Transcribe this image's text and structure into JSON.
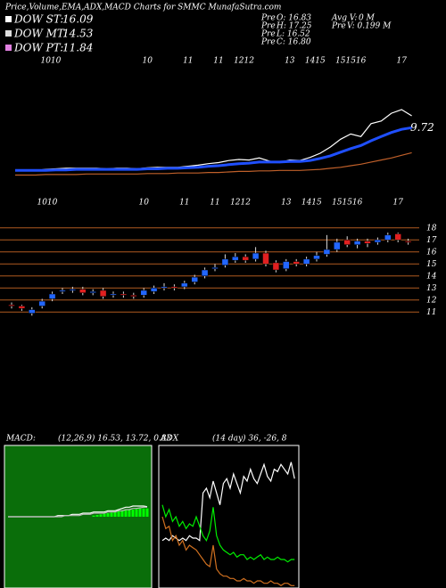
{
  "header": {
    "title": "Price,Volume,EMA,ADX,MACD Charts for SMMC MunafaSutra.com",
    "dow": [
      {
        "label": "DOW ST:",
        "value": "16.09",
        "color": "#ffffff"
      },
      {
        "label": "DOW MT:",
        "value": "14.53",
        "color": "#dddddd"
      },
      {
        "label": "DOW PT:",
        "value": "11.84",
        "color": "#e080e0"
      }
    ],
    "pre": [
      {
        "label": "Pre",
        "text": "O: 16.83"
      },
      {
        "label": "Pre",
        "text": "H: 17.25"
      },
      {
        "label": "Pre",
        "text": "L: 16.52"
      },
      {
        "label": "Pre",
        "text": "C: 16.80"
      }
    ],
    "volume": [
      {
        "label": "Avg V:",
        "text": "0  M"
      },
      {
        "label": "Pre",
        "text": "V: 0.199 M"
      }
    ]
  },
  "chart_data": [
    {
      "type": "line",
      "ylim": [
        0,
        24
      ],
      "end_label": 9.72,
      "series": [
        {
          "color": "#ffffff",
          "values": [
            1.6,
            1.6,
            1.5,
            1.7,
            1.8,
            1.9,
            1.9,
            1.9,
            1.9,
            1.8,
            1.9,
            1.9,
            1.8,
            2.0,
            2.1,
            2.1,
            2.1,
            2.3,
            2.5,
            2.8,
            3.0,
            3.4,
            3.6,
            3.5,
            3.9,
            3.3,
            3.0,
            3.5,
            3.4,
            4.0,
            4.8,
            6.0,
            7.5,
            8.5,
            8.0,
            10.5,
            11.0,
            12.5,
            13.2,
            12.0
          ]
        },
        {
          "color": "#1f4fff",
          "values": [
            1.5,
            1.5,
            1.5,
            1.5,
            1.6,
            1.6,
            1.7,
            1.7,
            1.7,
            1.7,
            1.7,
            1.7,
            1.7,
            1.8,
            1.8,
            1.9,
            1.9,
            2.0,
            2.1,
            2.3,
            2.4,
            2.6,
            2.8,
            2.9,
            3.1,
            3.1,
            3.1,
            3.2,
            3.2,
            3.4,
            3.8,
            4.3,
            5.0,
            5.7,
            6.3,
            7.2,
            8.0,
            8.8,
            9.4,
            9.72
          ]
        },
        {
          "color": "#c0602a",
          "values": [
            0.6,
            0.6,
            0.6,
            0.7,
            0.7,
            0.7,
            0.7,
            0.8,
            0.8,
            0.8,
            0.8,
            0.8,
            0.8,
            0.9,
            0.9,
            0.9,
            1.0,
            1.0,
            1.0,
            1.1,
            1.1,
            1.2,
            1.3,
            1.3,
            1.4,
            1.4,
            1.5,
            1.5,
            1.5,
            1.6,
            1.7,
            1.9,
            2.1,
            2.4,
            2.7,
            3.1,
            3.5,
            3.9,
            4.4,
            4.9
          ]
        }
      ]
    },
    {
      "type": "candlestick",
      "ylim": [
        10.5,
        18.5
      ],
      "yticks": [
        18,
        17,
        16,
        15,
        14,
        13,
        12,
        11
      ],
      "grid": true,
      "up_color": "#2266ff",
      "down_color": "#e02020",
      "grid_color": "#b05a20",
      "categories": [
        null,
        null,
        null,
        "10",
        "10",
        null,
        null,
        null,
        null,
        null,
        null,
        null,
        null,
        "10",
        null,
        null,
        null,
        "11",
        null,
        null,
        "11",
        null,
        "12",
        "12",
        null,
        null,
        null,
        "13",
        null,
        "14",
        "15",
        null,
        "15",
        "15",
        "16",
        null,
        null,
        null,
        "17",
        null
      ],
      "open": [
        11.6,
        11.5,
        10.9,
        11.5,
        12.1,
        12.7,
        12.8,
        12.9,
        12.6,
        12.8,
        12.4,
        12.5,
        12.4,
        12.4,
        12.7,
        13.0,
        13.1,
        13.1,
        13.5,
        14.0,
        14.6,
        14.9,
        15.3,
        15.6,
        15.4,
        15.9,
        15.1,
        14.6,
        15.2,
        15.0,
        15.4,
        15.8,
        16.2,
        17.0,
        16.6,
        16.9,
        16.8,
        17.0,
        17.5,
        16.9
      ],
      "high": [
        11.8,
        11.6,
        11.4,
        12.1,
        12.7,
        13.0,
        13.1,
        13.1,
        12.9,
        13.0,
        12.7,
        12.7,
        12.6,
        13.0,
        13.2,
        13.4,
        13.3,
        13.6,
        14.1,
        14.7,
        15.0,
        15.8,
        15.9,
        15.8,
        16.4,
        16.1,
        15.3,
        15.4,
        15.4,
        15.6,
        16.0,
        17.4,
        17.1,
        17.3,
        17.1,
        17.1,
        17.2,
        17.6,
        17.6,
        17.1
      ],
      "low": [
        11.3,
        11.1,
        10.7,
        11.3,
        11.9,
        12.5,
        12.6,
        12.4,
        12.4,
        12.1,
        12.2,
        12.2,
        12.1,
        12.2,
        12.5,
        12.8,
        12.8,
        12.9,
        13.3,
        13.8,
        14.4,
        14.7,
        15.1,
        15.1,
        15.2,
        14.8,
        14.3,
        14.4,
        14.8,
        14.8,
        15.2,
        15.6,
        16.0,
        16.4,
        16.3,
        16.4,
        16.6,
        16.8,
        16.8,
        16.6
      ],
      "close": [
        11.5,
        11.3,
        11.2,
        11.9,
        12.5,
        12.8,
        12.9,
        12.6,
        12.7,
        12.3,
        12.5,
        12.4,
        12.3,
        12.8,
        13.0,
        13.1,
        13.0,
        13.4,
        13.9,
        14.5,
        14.7,
        15.4,
        15.6,
        15.3,
        15.9,
        15.0,
        14.5,
        15.2,
        15.0,
        15.4,
        15.7,
        16.2,
        16.8,
        16.6,
        16.9,
        16.7,
        17.0,
        17.4,
        17.0,
        16.8
      ]
    },
    {
      "type": "line",
      "title": "MACD:",
      "subtitle": "(12,26,9) 16.53, 13.72, 0.83",
      "ylim": [
        -6,
        6
      ],
      "background": "#0a6e0a",
      "series": [
        {
          "style": "bar",
          "color": "#00ff00",
          "values": [
            0,
            0,
            0,
            0,
            0,
            0,
            0,
            0,
            0,
            0,
            0,
            0,
            0,
            0,
            0,
            0,
            0,
            0,
            0,
            0,
            0,
            0,
            0,
            0,
            0.1,
            0.15,
            0.2,
            0.25,
            0.3,
            0.35,
            0.4,
            0.45,
            0.5,
            0.55,
            0.6,
            0.6,
            0.65,
            0.7,
            0.7,
            0.7
          ]
        },
        {
          "color": "#ffffff",
          "values": [
            0,
            0,
            0,
            0,
            0,
            0,
            0,
            0,
            0,
            0,
            0,
            0,
            0,
            0,
            0.1,
            0.1,
            0.1,
            0.1,
            0.2,
            0.2,
            0.2,
            0.3,
            0.3,
            0.3,
            0.4,
            0.4,
            0.4,
            0.4,
            0.5,
            0.5,
            0.5,
            0.6,
            0.7,
            0.8,
            0.8,
            0.9,
            0.9,
            0.9,
            0.9,
            0.85
          ]
        },
        {
          "color": "#bbbbbb",
          "values": [
            0,
            0,
            0,
            0,
            0,
            0,
            0,
            0,
            0,
            0,
            0,
            0,
            0,
            0,
            0,
            0,
            0.1,
            0.1,
            0.1,
            0.1,
            0.1,
            0.2,
            0.2,
            0.2,
            0.3,
            0.3,
            0.3,
            0.3,
            0.4,
            0.4,
            0.4,
            0.5,
            0.5,
            0.6,
            0.6,
            0.7,
            0.7,
            0.75,
            0.8,
            0.8
          ]
        }
      ]
    },
    {
      "type": "line",
      "title": "ADX",
      "subtitle": "(14 day) 36, -26, 8",
      "ylim": [
        0,
        60
      ],
      "background": "#000000",
      "series": [
        {
          "color": "#ffffff",
          "values": [
            20,
            21,
            20,
            22,
            21,
            20,
            21,
            20,
            22,
            21,
            21,
            20,
            40,
            42,
            38,
            45,
            40,
            35,
            44,
            46,
            42,
            48,
            44,
            40,
            47,
            45,
            50,
            46,
            44,
            48,
            52,
            47,
            45,
            50,
            49,
            52,
            50,
            48,
            53,
            46
          ]
        },
        {
          "color": "#00ee00",
          "values": [
            35,
            30,
            33,
            28,
            30,
            26,
            28,
            25,
            27,
            26,
            30,
            26,
            22,
            20,
            24,
            34,
            22,
            18,
            16,
            15,
            14,
            15,
            13,
            14,
            14,
            12,
            13,
            12,
            13,
            14,
            12,
            13,
            12,
            12,
            13,
            12,
            12,
            11,
            12,
            12
          ]
        },
        {
          "color": "#d07020",
          "values": [
            30,
            25,
            26,
            20,
            22,
            18,
            20,
            16,
            18,
            17,
            16,
            14,
            12,
            10,
            9,
            18,
            8,
            6,
            5,
            5,
            4,
            4,
            3,
            3,
            4,
            3,
            3,
            2,
            3,
            3,
            2,
            2,
            3,
            2,
            2,
            1,
            2,
            2,
            1,
            1
          ]
        }
      ]
    }
  ]
}
